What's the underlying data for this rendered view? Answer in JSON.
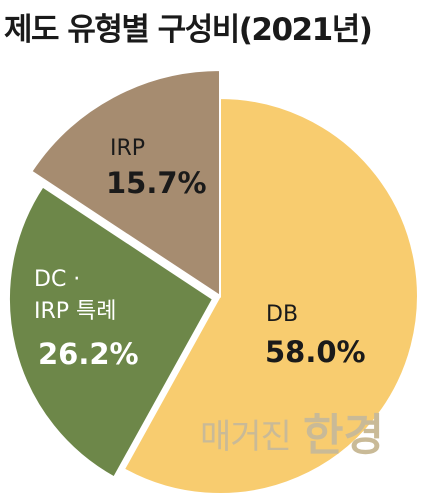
{
  "title": "제도 유형별 구성비(2021년)",
  "watermark": {
    "small": "매거진",
    "big": "한경"
  },
  "chart_data": {
    "type": "pie",
    "slices": [
      {
        "label": "DB",
        "value": 58.0,
        "value_label": "58.0%",
        "color": "#f8cc6f"
      },
      {
        "label": "DC ·",
        "label2": "IRP 특례",
        "value": 26.2,
        "value_label": "26.2%",
        "color": "#6d8749"
      },
      {
        "label": "IRP",
        "value": 15.7,
        "value_label": "15.7%",
        "color": "#a68c70"
      }
    ]
  }
}
